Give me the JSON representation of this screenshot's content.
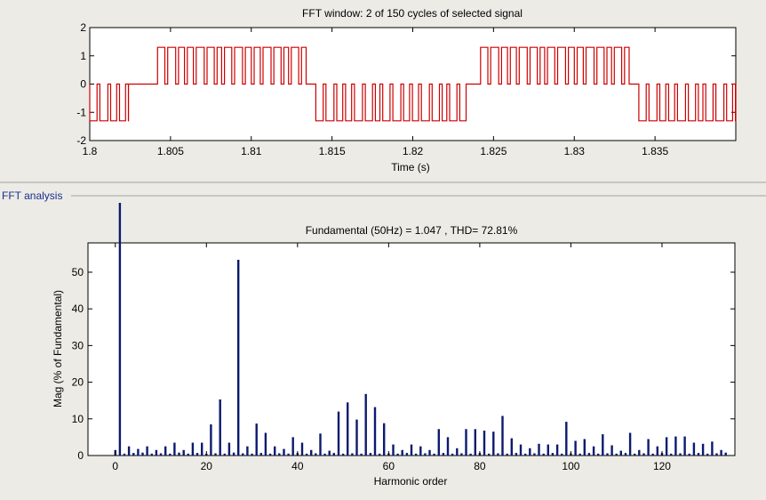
{
  "panel": {
    "label": "FFT analysis"
  },
  "colors": {
    "signal": "#cc0000",
    "spectrum": "#0b1a6e",
    "background": "#ecebe6",
    "axes_bg": "#ffffff"
  },
  "chart_data": [
    {
      "type": "line",
      "title": "FFT window: 2 of 150 cycles of selected signal",
      "xlabel": "Time (s)",
      "ylabel": "",
      "xlim": [
        1.8,
        1.84
      ],
      "ylim": [
        -2,
        2
      ],
      "xticks": [
        1.8,
        1.805,
        1.81,
        1.815,
        1.82,
        1.825,
        1.83,
        1.835
      ],
      "xtick_labels": [
        "1.8",
        "1.805",
        "1.81",
        "1.815",
        "1.82",
        "1.825",
        "1.83",
        "1.835"
      ],
      "yticks": [
        -2,
        -1,
        0,
        1,
        2
      ],
      "ytick_labels": [
        "-2",
        "-1",
        "0",
        "1",
        "2"
      ],
      "grid": false,
      "series": [
        {
          "shape": "PWM-like three-level square wave with fundamental period 0.02 s",
          "levels": [
            -1.3,
            0,
            1.3
          ],
          "positive_burst_s": [
            [
              1.8042,
              1.8134
            ],
            [
              1.8242,
              1.8334
            ]
          ],
          "negative_burst_s": [
            [
              1.8,
              1.8024
            ],
            [
              1.814,
              1.8233
            ],
            [
              1.834,
              1.84
            ]
          ]
        }
      ]
    },
    {
      "type": "bar",
      "title": "Fundamental (50Hz) = 1.047 , THD= 72.81%",
      "xlabel": "Harmonic order",
      "ylabel": "Mag (% of Fundamental)",
      "xlim": [
        -6,
        136
      ],
      "ylim": [
        0,
        58
      ],
      "xticks": [
        0,
        20,
        40,
        60,
        80,
        100,
        120
      ],
      "xtick_labels": [
        "0",
        "20",
        "40",
        "60",
        "80",
        "100",
        "120"
      ],
      "yticks": [
        0,
        10,
        20,
        30,
        40,
        50
      ],
      "ytick_labels": [
        "0",
        "10",
        "20",
        "30",
        "40",
        "50"
      ],
      "grid": false,
      "harmonics": [
        [
          0,
          1.5
        ],
        [
          1,
          100
        ],
        [
          3,
          2.5
        ],
        [
          5,
          1.8
        ],
        [
          7,
          2.5
        ],
        [
          9,
          1.5
        ],
        [
          11,
          2.5
        ],
        [
          13,
          3.5
        ],
        [
          15,
          1.5
        ],
        [
          17,
          3.5
        ],
        [
          19,
          3.5
        ],
        [
          21,
          8.5
        ],
        [
          23,
          15.3
        ],
        [
          25,
          3.5
        ],
        [
          27,
          53.4
        ],
        [
          29,
          2.5
        ],
        [
          31,
          8.7
        ],
        [
          33,
          6.2
        ],
        [
          35,
          2.5
        ],
        [
          37,
          1.8
        ],
        [
          39,
          5
        ],
        [
          41,
          3.5
        ],
        [
          43,
          1.5
        ],
        [
          45,
          6
        ],
        [
          47,
          1.3
        ],
        [
          49,
          12
        ],
        [
          51,
          14.5
        ],
        [
          53,
          9.8
        ],
        [
          55,
          16.8
        ],
        [
          57,
          13.2
        ],
        [
          59,
          8.8
        ],
        [
          61,
          3
        ],
        [
          63,
          1.5
        ],
        [
          65,
          3
        ],
        [
          67,
          2.5
        ],
        [
          69,
          1.5
        ],
        [
          71,
          7.2
        ],
        [
          73,
          5
        ],
        [
          75,
          2
        ],
        [
          77,
          7.2
        ],
        [
          79,
          7.2
        ],
        [
          81,
          6.8
        ],
        [
          83,
          6.5
        ],
        [
          85,
          10.8
        ],
        [
          87,
          4.7
        ],
        [
          89,
          3
        ],
        [
          91,
          2
        ],
        [
          93,
          3.2
        ],
        [
          95,
          3
        ],
        [
          97,
          3
        ],
        [
          99,
          9.2
        ],
        [
          101,
          4
        ],
        [
          103,
          4.5
        ],
        [
          105,
          2.5
        ],
        [
          107,
          5.8
        ],
        [
          109,
          2.8
        ],
        [
          111,
          1.3
        ],
        [
          113,
          6.2
        ],
        [
          115,
          1.5
        ],
        [
          117,
          4.5
        ],
        [
          119,
          2.5
        ],
        [
          121,
          5
        ],
        [
          123,
          5.2
        ],
        [
          125,
          5.2
        ],
        [
          127,
          3.5
        ],
        [
          129,
          3.2
        ],
        [
          131,
          3.8
        ],
        [
          133,
          1.5
        ],
        [
          134,
          0.8
        ],
        [
          2,
          0.5
        ],
        [
          4,
          0.7
        ],
        [
          6,
          0.8
        ],
        [
          8,
          0.5
        ],
        [
          10,
          0.6
        ],
        [
          12,
          0.5
        ],
        [
          14,
          0.8
        ],
        [
          16,
          0.5
        ],
        [
          18,
          0.7
        ],
        [
          20,
          0.5
        ],
        [
          22,
          0.6
        ],
        [
          24,
          0.5
        ],
        [
          26,
          0.8
        ],
        [
          28,
          0.6
        ],
        [
          30,
          0.5
        ],
        [
          32,
          0.7
        ],
        [
          34,
          0.5
        ],
        [
          36,
          0.6
        ],
        [
          38,
          0.5
        ],
        [
          40,
          0.7
        ],
        [
          42,
          0.5
        ],
        [
          44,
          0.6
        ],
        [
          46,
          0.5
        ],
        [
          48,
          0.7
        ],
        [
          50,
          0.5
        ],
        [
          52,
          0.6
        ],
        [
          54,
          0.5
        ],
        [
          56,
          0.7
        ],
        [
          58,
          0.5
        ],
        [
          60,
          0.6
        ],
        [
          62,
          0.5
        ],
        [
          64,
          0.7
        ],
        [
          66,
          0.5
        ],
        [
          68,
          0.6
        ],
        [
          70,
          0.5
        ],
        [
          72,
          0.7
        ],
        [
          74,
          0.5
        ],
        [
          76,
          0.6
        ],
        [
          78,
          0.5
        ],
        [
          80,
          0.7
        ],
        [
          82,
          0.5
        ],
        [
          84,
          0.6
        ],
        [
          86,
          0.5
        ],
        [
          88,
          0.7
        ],
        [
          90,
          0.5
        ],
        [
          92,
          0.6
        ],
        [
          94,
          0.5
        ],
        [
          96,
          0.7
        ],
        [
          98,
          0.5
        ],
        [
          100,
          0.6
        ],
        [
          102,
          0.5
        ],
        [
          104,
          0.7
        ],
        [
          106,
          0.5
        ],
        [
          108,
          0.6
        ],
        [
          110,
          0.5
        ],
        [
          112,
          0.7
        ],
        [
          114,
          0.5
        ],
        [
          116,
          0.6
        ],
        [
          118,
          0.5
        ],
        [
          120,
          0.7
        ],
        [
          122,
          0.5
        ],
        [
          124,
          0.6
        ],
        [
          126,
          0.5
        ],
        [
          128,
          0.7
        ],
        [
          130,
          0.5
        ],
        [
          132,
          0.6
        ]
      ]
    }
  ]
}
